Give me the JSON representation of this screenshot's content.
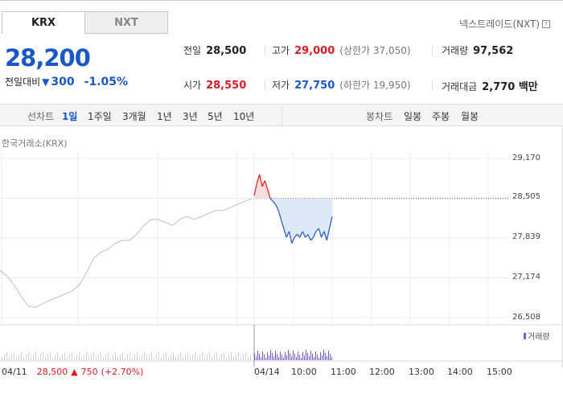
{
  "tabs": [
    {
      "label": "KRX",
      "active": true
    },
    {
      "label": "NXT",
      "active": false
    }
  ],
  "nxt_link": {
    "label": "넥스트레이드(NXT)"
  },
  "price": {
    "current": "28,200",
    "diff_label": "전일대비",
    "diff_value": "300",
    "diff_pct": "-1.05%",
    "direction": "down",
    "color": "#1a57c7"
  },
  "stats": {
    "prev_close": {
      "label": "전일",
      "value": "28,500"
    },
    "high": {
      "label": "고가",
      "value": "29,000",
      "sub": "(상한가 37,050)"
    },
    "volume": {
      "label": "거래량",
      "value": "97,562"
    },
    "open": {
      "label": "시가",
      "value": "28,550"
    },
    "low": {
      "label": "저가",
      "value": "27,750",
      "sub": "(하한가 19,950)"
    },
    "amount": {
      "label": "거래대금",
      "value": "2,770 백만"
    }
  },
  "toolbar": {
    "line_label": "선차트",
    "line_periods": [
      "1일",
      "1주일",
      "3개월",
      "1년",
      "3년",
      "5년",
      "10년"
    ],
    "active_period": "1일",
    "candle_label": "봉차트",
    "candle_periods": [
      "일봉",
      "주봉",
      "월봉"
    ]
  },
  "chart": {
    "source_label": "한국거래소(KRX)",
    "y_ticks": [
      "29,170",
      "28,505",
      "27,839",
      "27,174",
      "26,508"
    ],
    "x_ticks": [
      "04/11",
      "04/14",
      "10:00",
      "11:00",
      "12:00",
      "13:00",
      "14:00",
      "15:00"
    ],
    "prev_close_line": 28500,
    "up_color": "#e0262d",
    "down_color": "#2d62c9",
    "history_color": "#c8c8c8",
    "volume_color": "#7a5cc8",
    "volume_legend": "거래량",
    "bottom_info": {
      "date": "04/11",
      "close": "28,500",
      "change": "750",
      "pct": "(+2.70%)"
    }
  },
  "chart_data": {
    "type": "line",
    "title": "",
    "xlabel": "",
    "ylabel": "",
    "ylim": [
      26508,
      29170
    ],
    "series": [
      {
        "values": [
          27300,
          27200,
          27050,
          26850,
          26700,
          26680,
          26750,
          26800,
          26850,
          26900,
          26950,
          27050,
          27250,
          27500,
          27600,
          27650,
          27750,
          27800,
          27800,
          27900,
          28050,
          28150,
          28150,
          28100,
          28050,
          28150,
          28200,
          28150,
          28200,
          28250,
          28300,
          28300,
          28350,
          28400,
          28450,
          28500
        ]
      },
      {
        "values": [
          28550,
          28750,
          28900,
          28700,
          28800,
          28650,
          28500,
          28450,
          28400,
          28300,
          28150,
          28000,
          27850,
          27950,
          27750,
          27850,
          27900,
          27850,
          27950,
          27850,
          27900,
          27800,
          27850,
          27950,
          28000,
          27850,
          27950,
          27800,
          28000,
          28200
        ]
      }
    ]
  }
}
